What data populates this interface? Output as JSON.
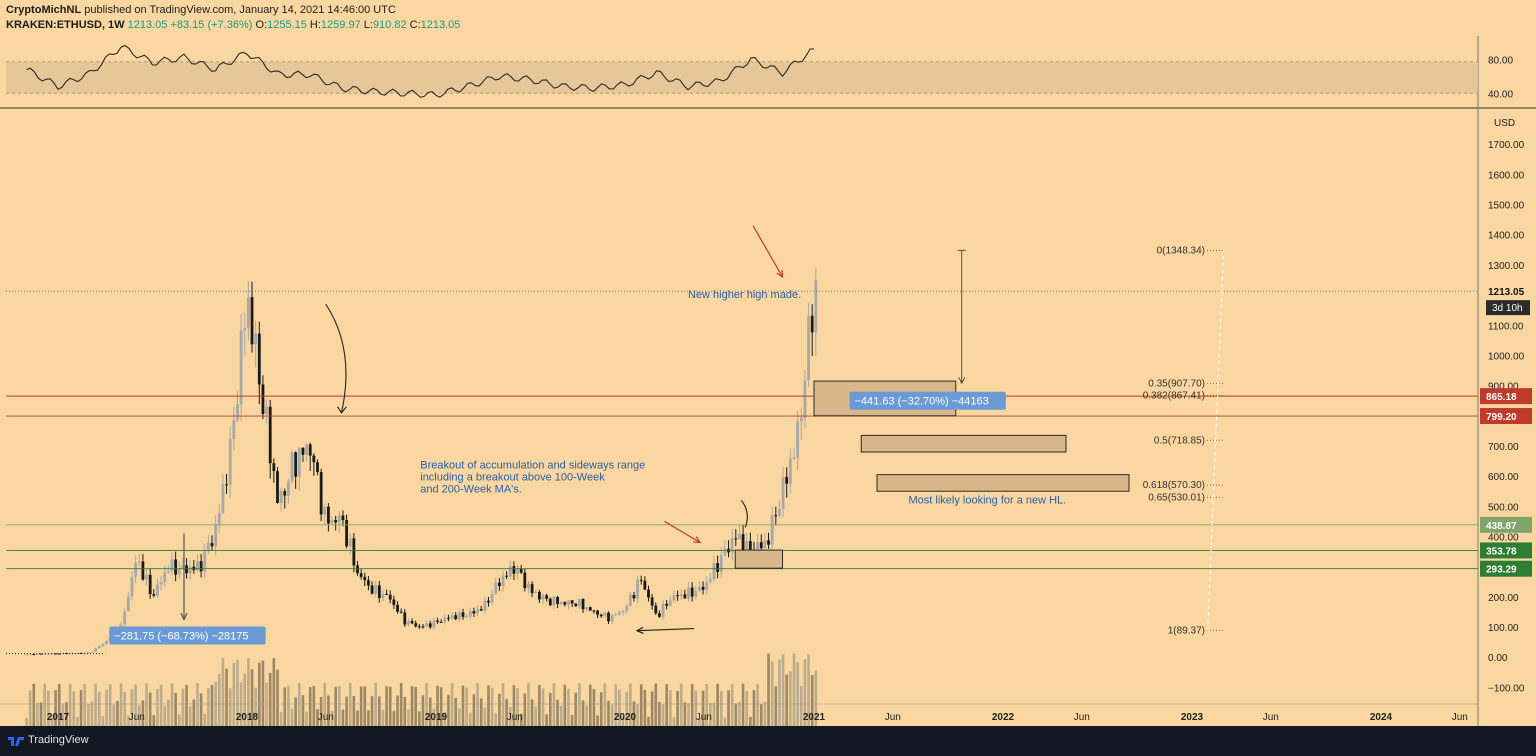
{
  "header": {
    "author": "CryptoMichNL",
    "published": "published on TradingView.com, January 14, 2021 14:46:00 UTC",
    "symbol": "KRAKEN:ETHUSD, 1W",
    "last": "1213.05",
    "change": "+83.15 (+7.36%)",
    "open_label": "O:",
    "open": "1255.15",
    "high_label": "H:",
    "high": "1259.97",
    "low_label": "L:",
    "low": "910.82",
    "close_label": "C:",
    "close": "1213.05"
  },
  "footer": {
    "brand": "TradingView",
    "logo_icon": "tradingview-logo-icon"
  },
  "colors": {
    "background": "#fad7a0",
    "green_line": "#7fa46a",
    "red_line": "#c0392b",
    "annotation_text": "#2a5fa8",
    "measure_box": "#6b9bd6"
  },
  "chart_data": [
    {
      "type": "line",
      "panel": "oscillator",
      "y_ticks": [
        "80.00",
        "40.00"
      ],
      "ylim": [
        25,
        105
      ],
      "band": [
        40,
        77
      ],
      "x": [
        "2016-11",
        "2017-01",
        "2017-03",
        "2017-05",
        "2017-07",
        "2017-09",
        "2017-11",
        "2018-01",
        "2018-03",
        "2018-05",
        "2018-07",
        "2018-09",
        "2018-11",
        "2019-01",
        "2019-03",
        "2019-05",
        "2019-07",
        "2019-09",
        "2019-11",
        "2020-01",
        "2020-03",
        "2020-05",
        "2020-07",
        "2020-09",
        "2020-11",
        "2021-01"
      ],
      "values": [
        68,
        48,
        63,
        95,
        76,
        82,
        68,
        88,
        62,
        62,
        46,
        42,
        40,
        38,
        48,
        60,
        56,
        48,
        46,
        50,
        64,
        48,
        54,
        80,
        64,
        92
      ]
    },
    {
      "type": "candlestick",
      "panel": "price",
      "ylabel": "USD",
      "ylim": [
        -155,
        1800
      ],
      "y_ticks": [
        "1700.00",
        "1600.00",
        "1500.00",
        "1400.00",
        "1300.00",
        "1200.00",
        "1100.00",
        "1000.00",
        "900.00",
        "800.00",
        "700.00",
        "600.00",
        "500.00",
        "400.00",
        "300.00",
        "200.00",
        "100.00",
        "0.00",
        "−100.00"
      ],
      "x_ticks": [
        "2017",
        "Jun",
        "2018",
        "Jun",
        "2019",
        "Jun",
        "2020",
        "Jun",
        "2021",
        "Jun",
        "2022",
        "Jun",
        "2023",
        "Jun",
        "2024",
        "Jun"
      ],
      "x_tick_dates": [
        "2017-01",
        "2017-06",
        "2018-01",
        "2018-06",
        "2019-01",
        "2019-06",
        "2020-01",
        "2020-06",
        "2021-01",
        "2021-06",
        "2022-01",
        "2022-06",
        "2023-01",
        "2023-06",
        "2024-01",
        "2024-06"
      ],
      "price_path": [
        [
          "2016-11",
          10
        ],
        [
          "2017-03",
          15
        ],
        [
          "2017-04",
          50
        ],
        [
          "2017-05",
          100
        ],
        [
          "2017-06",
          330
        ],
        [
          "2017-07",
          200
        ],
        [
          "2017-08",
          300
        ],
        [
          "2017-09",
          290
        ],
        [
          "2017-10",
          300
        ],
        [
          "2017-11",
          420
        ],
        [
          "2017-12",
          700
        ],
        [
          "2018-01",
          1200
        ],
        [
          "2018-02",
          850
        ],
        [
          "2018-03",
          500
        ],
        [
          "2018-04",
          650
        ],
        [
          "2018-05",
          700
        ],
        [
          "2018-06",
          450
        ],
        [
          "2018-07",
          460
        ],
        [
          "2018-08",
          280
        ],
        [
          "2018-09",
          220
        ],
        [
          "2018-10",
          200
        ],
        [
          "2018-11",
          120
        ],
        [
          "2018-12",
          100
        ],
        [
          "2019-01",
          115
        ],
        [
          "2019-02",
          135
        ],
        [
          "2019-03",
          140
        ],
        [
          "2019-04",
          165
        ],
        [
          "2019-05",
          250
        ],
        [
          "2019-06",
          300
        ],
        [
          "2019-07",
          220
        ],
        [
          "2019-08",
          190
        ],
        [
          "2019-09",
          180
        ],
        [
          "2019-10",
          180
        ],
        [
          "2019-11",
          150
        ],
        [
          "2019-12",
          130
        ],
        [
          "2020-01",
          160
        ],
        [
          "2020-02",
          260
        ],
        [
          "2020-03",
          135
        ],
        [
          "2020-04",
          200
        ],
        [
          "2020-05",
          210
        ],
        [
          "2020-06",
          230
        ],
        [
          "2020-07",
          320
        ],
        [
          "2020-08",
          400
        ],
        [
          "2020-09",
          350
        ],
        [
          "2020-10",
          380
        ],
        [
          "2020-11",
          550
        ],
        [
          "2020-12",
          740
        ],
        [
          "2021-01",
          1213
        ]
      ],
      "horizontal_levels": [
        {
          "value": 865.18,
          "label": "865.18",
          "color": "#c0392b"
        },
        {
          "value": 799.2,
          "label": "799.20",
          "color": "#c0392b"
        },
        {
          "value": 438.87,
          "label": "438.87",
          "color": "#7fa46a"
        },
        {
          "value": 353.78,
          "label": "353.78",
          "color": "#2e7d32"
        },
        {
          "value": 293.29,
          "label": "293.29",
          "color": "#2e7d32"
        }
      ],
      "last_price": {
        "value": 1213.05,
        "label": "1213.05",
        "countdown": "3d 10h"
      },
      "fib_levels": [
        {
          "label": "0(1348.34)",
          "value": 1348.34
        },
        {
          "label": "0.35(907.70)",
          "value": 907.7
        },
        {
          "label": "0.382(867.41)",
          "value": 867.41
        },
        {
          "label": "0.5(718.85)",
          "value": 718.85
        },
        {
          "label": "0.618(570.30)",
          "value": 570.3
        },
        {
          "label": "0.65(530.01)",
          "value": 530.01
        },
        {
          "label": "1(89.37)",
          "value": 89.37
        }
      ],
      "zones": [
        {
          "from": "2021-01",
          "to": "2021-10",
          "low": 800,
          "high": 915
        },
        {
          "from": "2021-04",
          "to": "2022-05",
          "low": 680,
          "high": 735
        },
        {
          "from": "2021-05",
          "to": "2022-09",
          "low": 550,
          "high": 605
        },
        {
          "from": "2020-08",
          "to": "2020-11",
          "low": 295,
          "high": 355
        }
      ],
      "measurements": [
        {
          "label": "−441.63 (−32.70%) −44163",
          "at_date": "2021-03",
          "at_value": 850
        },
        {
          "label": "−281.75 (−68.73%) −28175",
          "at_date": "2017-04",
          "at_value": 72
        }
      ],
      "annotations": [
        {
          "text": "New higher high made.",
          "date": "2020-05",
          "value": 1190
        },
        {
          "lines": [
            "Breakout of accumulation and sideways range",
            "including a breakout above 100-Week",
            "and 200-Week MA's."
          ],
          "date": "2018-12",
          "value": 625
        },
        {
          "text": "Most likely looking for a new HL.",
          "date": "2021-07",
          "value": 510
        }
      ]
    }
  ]
}
